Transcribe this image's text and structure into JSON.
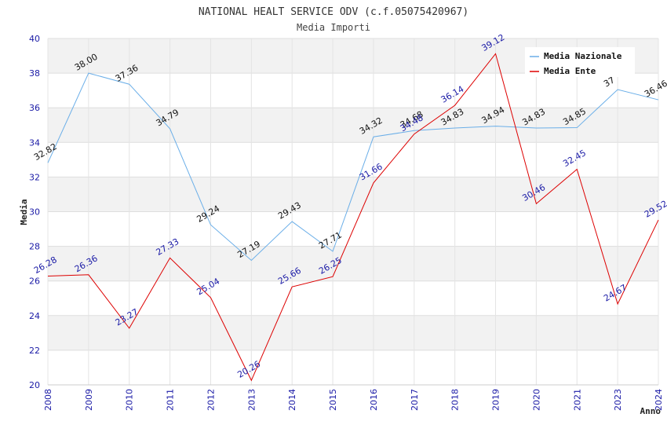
{
  "chart_data": {
    "type": "line",
    "title": "NATIONAL HEALT SERVICE ODV (c.f.05075420967)",
    "subtitle": "Media Importi",
    "xlabel": "Anno",
    "ylabel": "Media",
    "ylim": [
      20,
      40
    ],
    "yticks": [
      "20",
      "22",
      "24",
      "26",
      "28",
      "30",
      "32",
      "34",
      "36",
      "38",
      "40"
    ],
    "categories": [
      "2008",
      "2009",
      "2010",
      "2011",
      "2012",
      "2013",
      "2014",
      "2015",
      "2016",
      "2017",
      "2018",
      "2019",
      "2020",
      "2021",
      "2023",
      "2024"
    ],
    "legend_position": "top-right",
    "grid": true,
    "series": [
      {
        "name": "Media Nazionale",
        "color": "#6aaee8",
        "values": [
          32.82,
          38.0,
          37.36,
          34.79,
          29.24,
          27.19,
          29.43,
          27.71,
          34.32,
          34.68,
          34.83,
          34.94,
          34.83,
          34.85,
          37.05,
          36.46
        ],
        "labels": [
          "32.82",
          "38.00",
          "37.36",
          "34.79",
          "29.24",
          "27.19",
          "29.43",
          "27.71",
          "34.32",
          "34.68",
          "34.83",
          "34.94",
          "34.83",
          "34.85",
          "37",
          "36.46"
        ]
      },
      {
        "name": "Media Ente",
        "color": "#dd0000",
        "values": [
          26.28,
          26.36,
          23.27,
          27.33,
          25.04,
          20.26,
          25.66,
          26.25,
          31.66,
          34.48,
          36.14,
          39.12,
          30.46,
          32.45,
          24.67,
          29.52
        ],
        "labels": [
          "26.28",
          "26.36",
          "23.27",
          "27.33",
          "25.04",
          "20.26",
          "25.66",
          "26.25",
          "31.66",
          "34.48",
          "36.14",
          "39.12",
          "30.46",
          "32.45",
          "24.67",
          "29.52"
        ]
      }
    ]
  }
}
